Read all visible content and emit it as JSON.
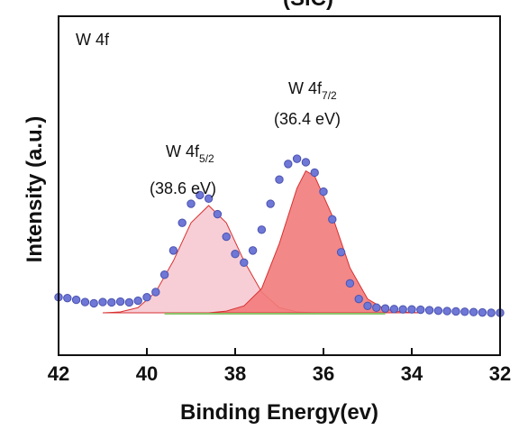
{
  "chart_data": {
    "type": "line",
    "title_partial": "(SiC)",
    "panel_label": "W 4f",
    "xlabel": "Binding Energy(ev)",
    "ylabel": "Intensity (a.u.)",
    "xlim": [
      42,
      32
    ],
    "x_reversed": true,
    "xticks": [
      "42",
      "40",
      "38",
      "36",
      "34",
      "32"
    ],
    "ylim": [
      0,
      100
    ],
    "y_tick_labels_shown": false,
    "annotations": [
      {
        "main": "W 4f",
        "sub": "5/2",
        "energy": "(38.6 eV)"
      },
      {
        "main": "W 4f",
        "sub": "7/2",
        "energy": "(36.4 eV)"
      }
    ],
    "colors": {
      "data_points": "#6f78d6",
      "data_point_edge": "#4a52b0",
      "peak_5_2_fill": "#f6c9d2",
      "peak_7_2_fill": "#f27b7b",
      "envelope": "#d83030",
      "background_line": "#8cc26a"
    },
    "series": [
      {
        "role": "raw-data",
        "marker": "circle",
        "x": [
          42.0,
          41.8,
          41.6,
          41.4,
          41.2,
          41.0,
          40.8,
          40.6,
          40.4,
          40.2,
          40.0,
          39.8,
          39.6,
          39.4,
          39.2,
          39.0,
          38.8,
          38.6,
          38.4,
          38.2,
          38.0,
          37.8,
          37.6,
          37.4,
          37.2,
          37.0,
          36.8,
          36.6,
          36.4,
          36.2,
          36.0,
          35.8,
          35.6,
          35.4,
          35.2,
          35.0,
          34.8,
          34.6,
          34.4,
          34.2,
          34.0,
          33.8,
          33.6,
          33.4,
          33.2,
          33.0,
          32.8,
          32.6,
          32.4,
          32.2,
          32.0
        ],
        "y": [
          9,
          8.5,
          7.5,
          6.2,
          5.5,
          6.2,
          6.0,
          6.5,
          6.0,
          7.0,
          9.0,
          12,
          22,
          36,
          52,
          63,
          68,
          66,
          57,
          44,
          34,
          29,
          36,
          48,
          63,
          77,
          86,
          89,
          87,
          81,
          70,
          54,
          35,
          17,
          8,
          4,
          3,
          2.5,
          2.2,
          2.0,
          2.0,
          1.8,
          1.5,
          1.2,
          1.0,
          0.8,
          0.6,
          0.4,
          0.2,
          0.0,
          0.0
        ]
      },
      {
        "role": "fit-component",
        "name": "W 4f5/2",
        "x": [
          41.0,
          40.6,
          40.2,
          39.8,
          39.4,
          39.0,
          38.6,
          38.2,
          37.8,
          37.4,
          37.0,
          36.6,
          36.2,
          35.8
        ],
        "y": [
          0,
          0.5,
          3,
          12,
          30,
          52,
          62,
          52,
          30,
          12,
          3,
          0.5,
          0,
          0
        ]
      },
      {
        "role": "fit-component",
        "name": "W 4f7/2",
        "x": [
          38.6,
          38.2,
          37.8,
          37.4,
          37.0,
          36.6,
          36.4,
          36.2,
          35.8,
          35.4,
          35.0,
          34.6,
          34.2,
          33.8
        ],
        "y": [
          0,
          1,
          4,
          14,
          40,
          72,
          82,
          79,
          56,
          26,
          8,
          2,
          0.5,
          0
        ]
      },
      {
        "role": "background",
        "x": [
          39.6,
          34.6
        ],
        "y": [
          0,
          0
        ]
      }
    ]
  }
}
